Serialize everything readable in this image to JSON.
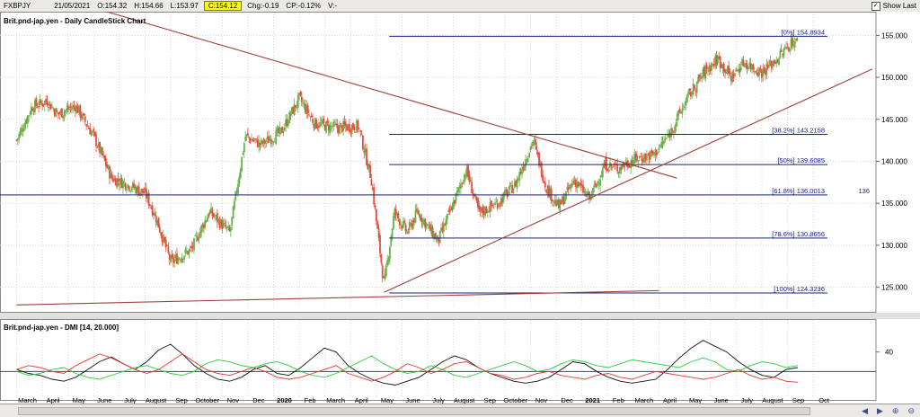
{
  "toolbar": {
    "symbol": "FXBPJY",
    "date": "21/05/2021",
    "open": "O:154.32",
    "high": "H:154.66",
    "low": "L:153.97",
    "close": "C:154.12",
    "chg": "Chg:-0.19",
    "cp": "CP:-0.12%",
    "v": "V:-",
    "show_last_label": "Show Last",
    "show_last_checked": true
  },
  "price_panel": {
    "title": "Brit.pnd-jap.yen - Daily CandleStick Chart"
  },
  "dmi_panel": {
    "title": "Brit.pnd-jap.yen - DMI [14, 20.000]"
  },
  "colors": {
    "up_candle": "#6ab04c",
    "down_candle": "#e74c3c",
    "fib_line": "#1a237e",
    "trend_line": "#a0413b",
    "dmi_plus": "#2ecc40",
    "dmi_minus": "#e53935",
    "adx": "#111111",
    "dmi_ref": "#3b3bb0"
  },
  "chart_data": [
    {
      "type": "candlestick",
      "title": "Brit.pnd-jap.yen - Daily CandleStick Chart",
      "ylim": [
        122.5,
        157.5
      ],
      "y_ticks": [
        125,
        130,
        135,
        140,
        145,
        150,
        155
      ],
      "y_tick_labels": [
        "125.000",
        "130.000",
        "135.000",
        "140.000",
        "145.000",
        "150.000",
        "155.000"
      ],
      "x_labels": [
        "March",
        "April",
        "May",
        "June",
        "July",
        "August",
        "Sep",
        "October",
        "Nov",
        "Dec",
        "2020",
        "Feb",
        "March",
        "April",
        "May",
        "June",
        "July",
        "August",
        "Sep",
        "October",
        "Nov",
        "Dec",
        "2021",
        "Feb",
        "March",
        "April",
        "May",
        "June",
        "July",
        "August",
        "Sep",
        "Oct"
      ],
      "close_path": [
        {
          "m": 0,
          "v": 142.5
        },
        {
          "m": 0.6,
          "v": 146.5
        },
        {
          "m": 1.2,
          "v": 147.2
        },
        {
          "m": 1.6,
          "v": 145.6
        },
        {
          "m": 2.3,
          "v": 146.6
        },
        {
          "m": 3.0,
          "v": 143.0
        },
        {
          "m": 3.7,
          "v": 138.0
        },
        {
          "m": 4.2,
          "v": 137.4
        },
        {
          "m": 5.0,
          "v": 136.2
        },
        {
          "m": 5.4,
          "v": 133.5
        },
        {
          "m": 6.0,
          "v": 128.0
        },
        {
          "m": 6.8,
          "v": 129.5
        },
        {
          "m": 7.5,
          "v": 134.0
        },
        {
          "m": 8.3,
          "v": 131.5
        },
        {
          "m": 8.9,
          "v": 143.0
        },
        {
          "m": 9.5,
          "v": 142.0
        },
        {
          "m": 10.3,
          "v": 143.5
        },
        {
          "m": 11.0,
          "v": 147.5
        },
        {
          "m": 11.6,
          "v": 144.5
        },
        {
          "m": 12.4,
          "v": 144.0
        },
        {
          "m": 13.3,
          "v": 144.2
        },
        {
          "m": 13.8,
          "v": 138.0
        },
        {
          "m": 14.3,
          "v": 125.2
        },
        {
          "m": 14.7,
          "v": 134.0
        },
        {
          "m": 15.2,
          "v": 131.5
        },
        {
          "m": 15.6,
          "v": 134.0
        },
        {
          "m": 16.4,
          "v": 130.5
        },
        {
          "m": 17.0,
          "v": 135.0
        },
        {
          "m": 17.5,
          "v": 139.0
        },
        {
          "m": 18.0,
          "v": 133.8
        },
        {
          "m": 18.7,
          "v": 135.0
        },
        {
          "m": 19.4,
          "v": 137.2
        },
        {
          "m": 20.1,
          "v": 142.5
        },
        {
          "m": 20.6,
          "v": 137.0
        },
        {
          "m": 21.1,
          "v": 134.5
        },
        {
          "m": 21.7,
          "v": 137.8
        },
        {
          "m": 22.3,
          "v": 135.5
        },
        {
          "m": 22.9,
          "v": 139.6
        },
        {
          "m": 23.4,
          "v": 139.2
        },
        {
          "m": 24.1,
          "v": 140.3
        },
        {
          "m": 24.8,
          "v": 140.8
        },
        {
          "m": 25.4,
          "v": 143.2
        },
        {
          "m": 26.1,
          "v": 147.5
        },
        {
          "m": 26.8,
          "v": 150.8
        },
        {
          "m": 27.3,
          "v": 152.2
        },
        {
          "m": 27.8,
          "v": 150.0
        },
        {
          "m": 28.3,
          "v": 151.8
        },
        {
          "m": 29.0,
          "v": 150.6
        },
        {
          "m": 29.6,
          "v": 152.2
        },
        {
          "m": 30.2,
          "v": 154.3
        },
        {
          "m": 30.4,
          "v": 154.1
        }
      ],
      "fibonacci_levels": [
        {
          "label": "[0%] 154.8934",
          "value": 154.8934
        },
        {
          "label": "[38.2%] 143.2158",
          "value": 143.2158
        },
        {
          "label": "[50%] 139.6085",
          "value": 139.6085
        },
        {
          "label": "[61.8%] 136.0013",
          "value": 136.0013
        },
        {
          "label": "[78.6%] 130.8656",
          "value": 130.8656
        },
        {
          "label": "[100%] 124.3236",
          "value": 124.3236
        }
      ],
      "right_edge_label": "136",
      "trend_lines": [
        {
          "from": {
            "m": 3.3,
            "v": 158.0
          },
          "to": {
            "m": 25.7,
            "v": 138.0
          }
        },
        {
          "from": {
            "m": 14.3,
            "v": 124.4
          },
          "to": {
            "m": 34.5,
            "v": 151.0
          }
        },
        {
          "from": {
            "m": 0,
            "v": 122.9
          },
          "to": {
            "m": 25.0,
            "v": 124.6
          }
        }
      ]
    },
    {
      "type": "line",
      "title": "Brit.pnd-jap.yen - DMI [14, 20.000]",
      "ylim": [
        0,
        60
      ],
      "y_ticks": [
        40
      ],
      "y_tick_labels": [
        "40"
      ],
      "reference_level": 20,
      "series": [
        {
          "name": "ADX",
          "values": [
            22,
            18,
            16,
            12,
            10,
            14,
            22,
            30,
            35,
            28,
            22,
            30,
            42,
            48,
            38,
            26,
            18,
            12,
            10,
            14,
            22,
            26,
            18,
            16,
            24,
            34,
            44,
            40,
            26,
            18,
            12,
            8,
            6,
            10,
            14,
            22,
            30,
            36,
            32,
            24,
            18,
            14,
            10,
            8,
            10,
            14,
            22,
            30,
            28,
            20,
            14,
            10,
            8,
            10,
            12,
            22,
            34,
            44,
            52,
            46,
            40,
            30,
            22,
            16,
            14,
            22,
            24
          ]
        },
        {
          "name": "+DI",
          "values": [
            20,
            16,
            18,
            22,
            24,
            18,
            14,
            12,
            16,
            20,
            24,
            26,
            22,
            18,
            16,
            20,
            28,
            32,
            30,
            26,
            24,
            28,
            30,
            26,
            20,
            16,
            14,
            18,
            24,
            30,
            36,
            28,
            22,
            18,
            20,
            26,
            22,
            16,
            14,
            18,
            22,
            26,
            30,
            26,
            20,
            22,
            28,
            32,
            30,
            26,
            24,
            28,
            32,
            30,
            28,
            26,
            24,
            30,
            34,
            30,
            22,
            20,
            26,
            30,
            28,
            24,
            26
          ]
        },
        {
          "name": "-DI",
          "values": [
            22,
            26,
            24,
            20,
            18,
            26,
            32,
            38,
            34,
            28,
            22,
            18,
            22,
            30,
            38,
            30,
            22,
            18,
            16,
            20,
            24,
            20,
            14,
            12,
            14,
            18,
            22,
            26,
            18,
            14,
            10,
            14,
            20,
            28,
            24,
            18,
            22,
            28,
            30,
            24,
            18,
            16,
            12,
            14,
            18,
            20,
            16,
            14,
            12,
            16,
            18,
            14,
            12,
            16,
            20,
            18,
            16,
            14,
            12,
            14,
            18,
            22,
            16,
            12,
            14,
            10,
            9
          ]
        }
      ]
    }
  ]
}
